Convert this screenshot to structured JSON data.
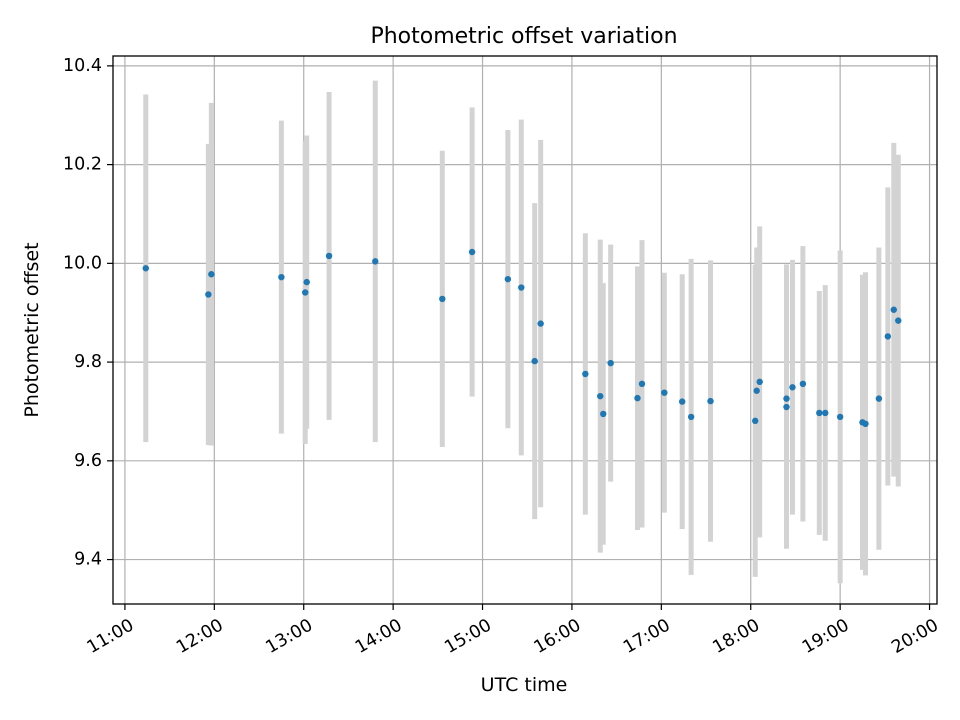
{
  "chart_data": {
    "type": "scatter",
    "title": "Photometric offset variation",
    "xlabel": "UTC time",
    "ylabel": "Photometric offset",
    "xlim": [
      "10:52",
      "20:05"
    ],
    "ylim": [
      9.31,
      10.42
    ],
    "x_ticks": [
      "11:00",
      "12:00",
      "13:00",
      "14:00",
      "15:00",
      "16:00",
      "17:00",
      "18:00",
      "19:00",
      "20:00"
    ],
    "y_ticks": [
      "9.4",
      "9.6",
      "9.8",
      "10.0",
      "10.2",
      "10.4"
    ],
    "grid": true,
    "colors": {
      "marker": "#1f77b4",
      "errorbar": "#d3d3d3",
      "grid": "#b0b0b0"
    },
    "points": [
      {
        "x": "11:14",
        "y": 9.99,
        "yerr": 0.352
      },
      {
        "x": "11:56",
        "y": 9.937,
        "yerr": 0.305
      },
      {
        "x": "11:58",
        "y": 9.978,
        "yerr": 0.347
      },
      {
        "x": "12:45",
        "y": 9.972,
        "yerr": 0.317
      },
      {
        "x": "13:01",
        "y": 9.941,
        "yerr": 0.307
      },
      {
        "x": "13:02",
        "y": 9.962,
        "yerr": 0.297
      },
      {
        "x": "13:17",
        "y": 10.015,
        "yerr": 0.332
      },
      {
        "x": "13:48",
        "y": 10.004,
        "yerr": 0.366
      },
      {
        "x": "14:33",
        "y": 9.928,
        "yerr": 0.3
      },
      {
        "x": "14:53",
        "y": 10.023,
        "yerr": 0.293
      },
      {
        "x": "15:17",
        "y": 9.968,
        "yerr": 0.302
      },
      {
        "x": "15:26",
        "y": 9.951,
        "yerr": 0.34
      },
      {
        "x": "15:35",
        "y": 9.802,
        "yerr": 0.32
      },
      {
        "x": "15:39",
        "y": 9.878,
        "yerr": 0.372
      },
      {
        "x": "16:09",
        "y": 9.776,
        "yerr": 0.285
      },
      {
        "x": "16:19",
        "y": 9.731,
        "yerr": 0.317
      },
      {
        "x": "16:21",
        "y": 9.695,
        "yerr": 0.265
      },
      {
        "x": "16:26",
        "y": 9.798,
        "yerr": 0.24
      },
      {
        "x": "16:44",
        "y": 9.727,
        "yerr": 0.267
      },
      {
        "x": "16:47",
        "y": 9.756,
        "yerr": 0.291
      },
      {
        "x": "17:02",
        "y": 9.738,
        "yerr": 0.243
      },
      {
        "x": "17:14",
        "y": 9.72,
        "yerr": 0.258
      },
      {
        "x": "17:20",
        "y": 9.689,
        "yerr": 0.32
      },
      {
        "x": "17:33",
        "y": 9.721,
        "yerr": 0.285
      },
      {
        "x": "18:03",
        "y": 9.681,
        "yerr": 0.316
      },
      {
        "x": "18:04",
        "y": 9.742,
        "yerr": 0.29
      },
      {
        "x": "18:06",
        "y": 9.76,
        "yerr": 0.315
      },
      {
        "x": "18:24",
        "y": 9.709,
        "yerr": 0.287
      },
      {
        "x": "18:24",
        "y": 9.726,
        "yerr": 0.272
      },
      {
        "x": "18:28",
        "y": 9.749,
        "yerr": 0.258
      },
      {
        "x": "18:35",
        "y": 9.756,
        "yerr": 0.279
      },
      {
        "x": "18:46",
        "y": 9.697,
        "yerr": 0.247
      },
      {
        "x": "18:50",
        "y": 9.697,
        "yerr": 0.259
      },
      {
        "x": "19:00",
        "y": 9.689,
        "yerr": 0.337
      },
      {
        "x": "19:15",
        "y": 9.678,
        "yerr": 0.299
      },
      {
        "x": "19:17",
        "y": 9.675,
        "yerr": 0.307
      },
      {
        "x": "19:26",
        "y": 9.726,
        "yerr": 0.306
      },
      {
        "x": "19:32",
        "y": 9.852,
        "yerr": 0.302
      },
      {
        "x": "19:36",
        "y": 9.906,
        "yerr": 0.338
      },
      {
        "x": "19:39",
        "y": 9.884,
        "yerr": 0.336
      }
    ]
  }
}
